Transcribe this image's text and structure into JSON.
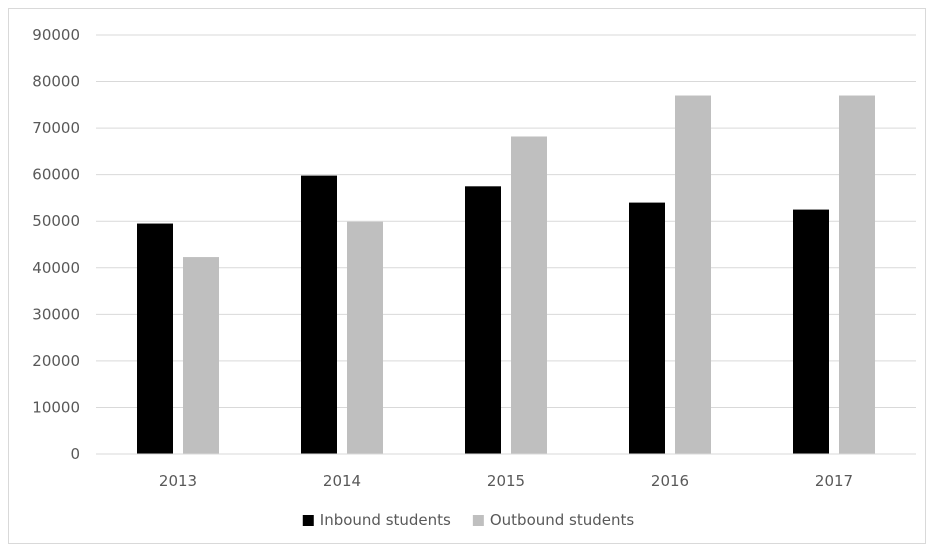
{
  "chart_data": {
    "type": "bar",
    "categories": [
      "2013",
      "2014",
      "2015",
      "2016",
      "2017"
    ],
    "series": [
      {
        "name": "Inbound students",
        "color": "#000000",
        "values": [
          49500,
          59800,
          57500,
          54000,
          52500
        ]
      },
      {
        "name": "Outbound students",
        "color": "#bfbfbf",
        "values": [
          42300,
          49900,
          68200,
          77000,
          77000
        ]
      }
    ],
    "y_ticks": [
      "0",
      "10000",
      "20000",
      "30000",
      "40000",
      "50000",
      "60000",
      "70000",
      "80000",
      "90000"
    ],
    "ylim": [
      0,
      90000
    ],
    "grid": true,
    "legend_position": "bottom"
  }
}
